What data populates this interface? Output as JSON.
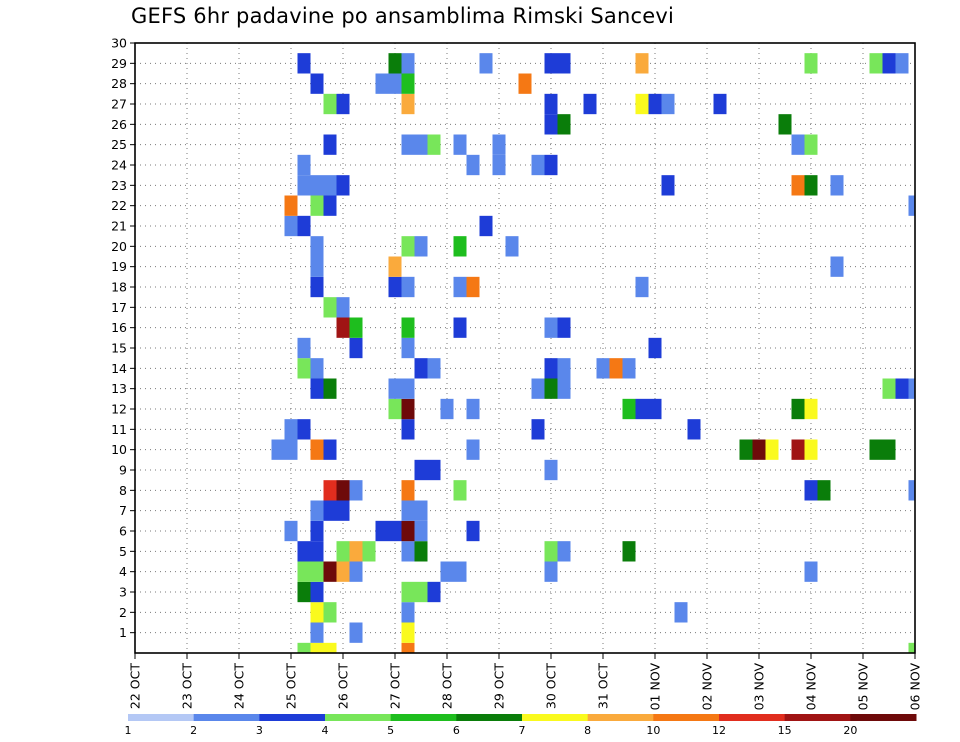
{
  "chart_data": {
    "type": "heatmap",
    "title": "GEFS 6hr padavine po ansamblima Rimski Sancevi",
    "xlabel": "",
    "ylabel": "",
    "x_tick_labels": [
      "22 OCT",
      "23 OCT",
      "24 OCT",
      "25 OCT",
      "26 OCT",
      "27 OCT",
      "28 OCT",
      "29 OCT",
      "30 OCT",
      "31 OCT",
      "01 NOV",
      "02 NOV",
      "03 NOV",
      "04 NOV",
      "05 NOV",
      "06 NOV"
    ],
    "y_tick_labels": [
      "1",
      "2",
      "3",
      "4",
      "5",
      "6",
      "7",
      "8",
      "9",
      "10",
      "11",
      "12",
      "13",
      "14",
      "15",
      "16",
      "17",
      "18",
      "19",
      "20",
      "21",
      "22",
      "23",
      "24",
      "25",
      "26",
      "27",
      "28",
      "29",
      "30"
    ],
    "x_range_days": [
      0,
      15
    ],
    "y_range_members": [
      0,
      30
    ],
    "time_step_hours": 6,
    "grid": true,
    "legend_position": "bottom",
    "colorbar": {
      "labels": [
        "1",
        "2",
        "3",
        "4",
        "5",
        "6",
        "7",
        "8",
        "10",
        "12",
        "15",
        "20"
      ],
      "colors": [
        "#b4c8f5",
        "#5a87eb",
        "#1e3cd7",
        "#78e65a",
        "#1ebe1e",
        "#0a7d0a",
        "#fafa1e",
        "#faaa3c",
        "#f57814",
        "#e12d1e",
        "#a01414",
        "#6e0a0a"
      ]
    },
    "cells": [
      [
        3.25,
        0,
        3
      ],
      [
        3.5,
        0,
        6
      ],
      [
        3.75,
        0,
        6
      ],
      [
        5.25,
        0,
        8
      ],
      [
        15,
        0,
        3
      ],
      [
        3.5,
        1,
        1
      ],
      [
        4.25,
        1,
        1
      ],
      [
        5.25,
        1,
        6
      ],
      [
        3.5,
        2,
        6
      ],
      [
        3.75,
        2,
        3
      ],
      [
        5.25,
        2,
        1
      ],
      [
        10.5,
        2,
        1
      ],
      [
        3.25,
        3,
        5
      ],
      [
        3.5,
        3,
        2
      ],
      [
        5.25,
        3,
        3
      ],
      [
        5.5,
        3,
        3
      ],
      [
        5.75,
        3,
        2
      ],
      [
        3.25,
        4,
        3
      ],
      [
        3.5,
        4,
        3
      ],
      [
        3.75,
        4,
        11
      ],
      [
        4.0,
        4,
        7
      ],
      [
        4.25,
        4,
        1
      ],
      [
        6.0,
        4,
        1
      ],
      [
        6.25,
        4,
        1
      ],
      [
        8.0,
        4,
        1
      ],
      [
        13.0,
        4,
        1
      ],
      [
        3.25,
        5,
        2
      ],
      [
        3.5,
        5,
        2
      ],
      [
        4.0,
        5,
        3
      ],
      [
        4.25,
        5,
        7
      ],
      [
        4.5,
        5,
        3
      ],
      [
        5.25,
        5,
        1
      ],
      [
        5.5,
        5,
        5
      ],
      [
        8.0,
        5,
        3
      ],
      [
        8.25,
        5,
        1
      ],
      [
        9.5,
        5,
        5
      ],
      [
        3.0,
        6,
        1
      ],
      [
        3.5,
        6,
        2
      ],
      [
        4.75,
        6,
        2
      ],
      [
        5.0,
        6,
        2
      ],
      [
        5.25,
        6,
        11
      ],
      [
        5.5,
        6,
        1
      ],
      [
        6.5,
        6,
        2
      ],
      [
        3.5,
        7,
        1
      ],
      [
        3.75,
        7,
        2
      ],
      [
        4.0,
        7,
        2
      ],
      [
        5.25,
        7,
        1
      ],
      [
        5.5,
        7,
        1
      ],
      [
        3.75,
        8,
        9
      ],
      [
        4.0,
        8,
        11
      ],
      [
        4.25,
        8,
        1
      ],
      [
        5.25,
        8,
        8
      ],
      [
        6.25,
        8,
        3
      ],
      [
        13.0,
        8,
        2
      ],
      [
        13.25,
        8,
        5
      ],
      [
        15,
        8,
        1
      ],
      [
        5.5,
        9,
        2
      ],
      [
        5.75,
        9,
        2
      ],
      [
        8.0,
        9,
        1
      ],
      [
        2.75,
        10,
        1
      ],
      [
        3.0,
        10,
        1
      ],
      [
        3.5,
        10,
        8
      ],
      [
        3.75,
        10,
        2
      ],
      [
        6.5,
        10,
        1
      ],
      [
        11.75,
        10,
        5
      ],
      [
        12.0,
        10,
        11
      ],
      [
        12.25,
        10,
        6
      ],
      [
        12.75,
        10,
        10
      ],
      [
        13.0,
        10,
        6
      ],
      [
        14.25,
        10,
        5
      ],
      [
        14.5,
        10,
        5
      ],
      [
        3.0,
        11,
        1
      ],
      [
        3.25,
        11,
        2
      ],
      [
        5.25,
        11,
        2
      ],
      [
        7.75,
        11,
        2
      ],
      [
        10.75,
        11,
        2
      ],
      [
        5.0,
        12,
        3
      ],
      [
        5.25,
        12,
        11
      ],
      [
        6.0,
        12,
        1
      ],
      [
        6.5,
        12,
        1
      ],
      [
        9.5,
        12,
        4
      ],
      [
        9.75,
        12,
        2
      ],
      [
        10.0,
        12,
        2
      ],
      [
        12.75,
        12,
        5
      ],
      [
        13.0,
        12,
        6
      ],
      [
        3.5,
        13,
        2
      ],
      [
        3.75,
        13,
        5
      ],
      [
        5.0,
        13,
        1
      ],
      [
        5.25,
        13,
        1
      ],
      [
        7.75,
        13,
        1
      ],
      [
        8.0,
        13,
        5
      ],
      [
        8.25,
        13,
        1
      ],
      [
        14.5,
        13,
        3
      ],
      [
        14.75,
        13,
        2
      ],
      [
        15,
        13,
        1
      ],
      [
        3.25,
        14,
        3
      ],
      [
        3.5,
        14,
        1
      ],
      [
        5.5,
        14,
        2
      ],
      [
        5.75,
        14,
        1
      ],
      [
        8.0,
        14,
        2
      ],
      [
        8.25,
        14,
        1
      ],
      [
        9.0,
        14,
        1
      ],
      [
        9.25,
        14,
        8
      ],
      [
        9.5,
        14,
        1
      ],
      [
        3.25,
        15,
        1
      ],
      [
        4.25,
        15,
        2
      ],
      [
        5.25,
        15,
        1
      ],
      [
        10.0,
        15,
        2
      ],
      [
        4.0,
        16,
        10
      ],
      [
        4.25,
        16,
        4
      ],
      [
        5.25,
        16,
        4
      ],
      [
        6.25,
        16,
        2
      ],
      [
        8.0,
        16,
        1
      ],
      [
        8.25,
        16,
        2
      ],
      [
        3.75,
        17,
        3
      ],
      [
        4.0,
        17,
        1
      ],
      [
        3.5,
        18,
        2
      ],
      [
        5.0,
        18,
        2
      ],
      [
        5.25,
        18,
        1
      ],
      [
        6.25,
        18,
        1
      ],
      [
        6.5,
        18,
        8
      ],
      [
        9.75,
        18,
        1
      ],
      [
        3.5,
        19,
        1
      ],
      [
        5.0,
        19,
        7
      ],
      [
        13.5,
        19,
        1
      ],
      [
        3.5,
        20,
        1
      ],
      [
        5.25,
        20,
        3
      ],
      [
        5.5,
        20,
        1
      ],
      [
        6.25,
        20,
        4
      ],
      [
        7.25,
        20,
        1
      ],
      [
        3.0,
        21,
        1
      ],
      [
        3.25,
        21,
        2
      ],
      [
        6.75,
        21,
        2
      ],
      [
        3.0,
        22,
        8
      ],
      [
        3.5,
        22,
        3
      ],
      [
        3.75,
        22,
        2
      ],
      [
        15,
        22,
        1
      ],
      [
        3.25,
        23,
        1
      ],
      [
        3.5,
        23,
        1
      ],
      [
        3.75,
        23,
        1
      ],
      [
        4.0,
        23,
        2
      ],
      [
        10.25,
        23,
        2
      ],
      [
        12.75,
        23,
        8
      ],
      [
        13.0,
        23,
        5
      ],
      [
        13.5,
        23,
        1
      ],
      [
        3.25,
        24,
        1
      ],
      [
        6.5,
        24,
        1
      ],
      [
        7.0,
        24,
        1
      ],
      [
        7.75,
        24,
        1
      ],
      [
        8.0,
        24,
        2
      ],
      [
        3.75,
        25,
        2
      ],
      [
        5.25,
        25,
        1
      ],
      [
        5.5,
        25,
        1
      ],
      [
        5.75,
        25,
        3
      ],
      [
        6.25,
        25,
        1
      ],
      [
        7.0,
        25,
        1
      ],
      [
        12.75,
        25,
        1
      ],
      [
        13.0,
        25,
        3
      ],
      [
        8.0,
        26,
        2
      ],
      [
        8.25,
        26,
        5
      ],
      [
        12.5,
        26,
        5
      ],
      [
        3.75,
        27,
        3
      ],
      [
        4.0,
        27,
        2
      ],
      [
        5.25,
        27,
        7
      ],
      [
        8.0,
        27,
        2
      ],
      [
        8.75,
        27,
        2
      ],
      [
        9.75,
        27,
        6
      ],
      [
        10.0,
        27,
        2
      ],
      [
        10.25,
        27,
        1
      ],
      [
        11.25,
        27,
        2
      ],
      [
        3.5,
        28,
        2
      ],
      [
        4.75,
        28,
        1
      ],
      [
        5.0,
        28,
        1
      ],
      [
        5.25,
        28,
        4
      ],
      [
        7.5,
        28,
        8
      ],
      [
        3.25,
        29,
        2
      ],
      [
        5.0,
        29,
        5
      ],
      [
        5.25,
        29,
        1
      ],
      [
        6.75,
        29,
        1
      ],
      [
        8.0,
        29,
        2
      ],
      [
        8.25,
        29,
        2
      ],
      [
        9.75,
        29,
        7
      ],
      [
        13.0,
        29,
        3
      ],
      [
        14.25,
        29,
        3
      ],
      [
        14.5,
        29,
        2
      ],
      [
        14.75,
        29,
        1
      ]
    ]
  }
}
